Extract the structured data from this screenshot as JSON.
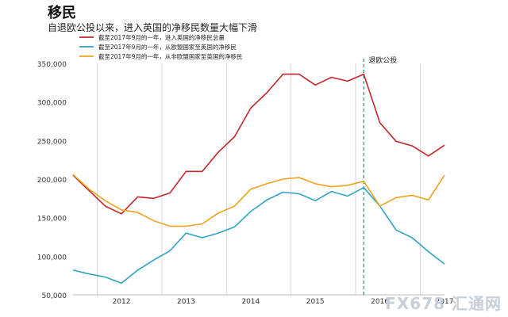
{
  "title": "移民",
  "subtitle": "自退欧公投以来，进入英国的净移民数量大幅下滑",
  "watermark": "FX678 汇通网",
  "chart_data": {
    "type": "line",
    "categories": [
      "2011Q4",
      "2012Q1",
      "2012Q2",
      "2012Q3",
      "2012Q4",
      "2013Q1",
      "2013Q2",
      "2013Q3",
      "2013Q4",
      "2014Q1",
      "2014Q2",
      "2014Q3",
      "2014Q4",
      "2015Q1",
      "2015Q2",
      "2015Q3",
      "2015Q4",
      "2016Q1",
      "2016Q2",
      "2016Q3",
      "2016Q4",
      "2017Q1",
      "2017Q2",
      "2017Q3"
    ],
    "xtick_labels": [
      "2012",
      "2013",
      "2014",
      "2015",
      "2016",
      "2017"
    ],
    "ylim": [
      50000,
      350000
    ],
    "yticks": [
      50000,
      100000,
      150000,
      200000,
      250000,
      300000,
      350000
    ],
    "ytick_labels": [
      "50,000",
      "100,000",
      "150,000",
      "200,000",
      "250,000",
      "300,000",
      "350,000"
    ],
    "grid": "vertical",
    "legend_position": "top-left",
    "annotation": {
      "label": "退欧公投",
      "x_category": "2016Q2"
    },
    "series": [
      {
        "name": "截至2017年9月的一年，进入英国的净移民总量",
        "color": "#c0262b",
        "values": [
          205000,
          185000,
          165000,
          155000,
          177000,
          175000,
          182000,
          210000,
          210000,
          235000,
          255000,
          292000,
          312000,
          336000,
          336000,
          322000,
          332000,
          327000,
          336000,
          273000,
          249000,
          243000,
          230000,
          244000
        ]
      },
      {
        "name": "截至2017年9月的一年，从欧盟国家至英国的净移民",
        "color": "#2ea3c4",
        "values": [
          82000,
          77000,
          73000,
          65000,
          82000,
          95000,
          107000,
          130000,
          124000,
          130000,
          138000,
          158000,
          173000,
          183000,
          181000,
          172000,
          184000,
          178000,
          189000,
          165000,
          134000,
          124000,
          106000,
          90000
        ]
      },
      {
        "name": "截至2017年9月的一年，从非欧盟国家至英国的净移民",
        "color": "#f2a21c",
        "values": [
          206000,
          187000,
          172000,
          160000,
          157000,
          146000,
          139000,
          139000,
          142000,
          156000,
          165000,
          187000,
          194000,
          200000,
          202000,
          194000,
          190000,
          192000,
          197000,
          165000,
          176000,
          179000,
          173000,
          205000
        ]
      }
    ]
  }
}
